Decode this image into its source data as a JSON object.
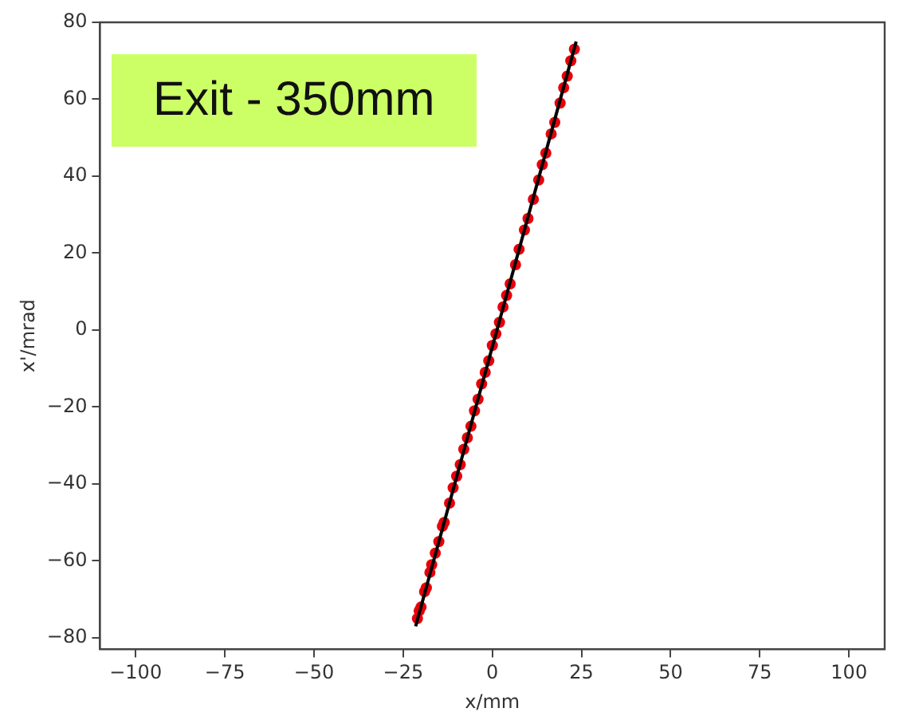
{
  "chart_data": {
    "type": "scatter",
    "xlabel": "x/mm",
    "ylabel": "x'/mrad",
    "annotations": [
      "Exit - 350mm"
    ],
    "xlim": [
      -110,
      110
    ],
    "xticks": [
      -100,
      -75,
      -50,
      -25,
      0,
      25,
      50,
      75,
      100
    ],
    "ylim": [
      -83,
      80
    ],
    "yticks": [
      -80,
      -60,
      -40,
      -20,
      0,
      20,
      40,
      60,
      80
    ],
    "grid": false,
    "legend": false,
    "series": [
      {
        "marker": "circle",
        "color": "#e8000b",
        "x": [
          -21,
          -20.5,
          -20,
          -19,
          -18.5,
          -17.5,
          -17,
          -16,
          -15,
          -14,
          -13.5,
          -12,
          -11,
          -10,
          -9,
          -8,
          -7,
          -6,
          -5,
          -4,
          -3,
          -2,
          -1,
          0,
          1,
          2,
          3,
          4,
          5,
          6.5,
          7.5,
          9,
          10,
          11.5,
          13,
          14,
          15,
          16.5,
          17.5,
          19,
          20,
          21,
          22,
          23
        ],
        "values": [
          -75,
          -73,
          -72,
          -68,
          -67,
          -63,
          -61,
          -58,
          -55,
          -51,
          -50,
          -45,
          -41,
          -38,
          -35,
          -31,
          -28,
          -25,
          -21,
          -18,
          -14,
          -11,
          -8,
          -4,
          -1,
          2,
          6,
          9,
          12,
          17,
          21,
          26,
          29,
          34,
          39,
          43,
          46,
          51,
          54,
          59,
          63,
          66,
          70,
          73
        ]
      },
      {
        "type": "line",
        "color": "#000000",
        "x": [
          -21.5,
          23.5
        ],
        "values": [
          -77,
          75
        ]
      }
    ]
  }
}
